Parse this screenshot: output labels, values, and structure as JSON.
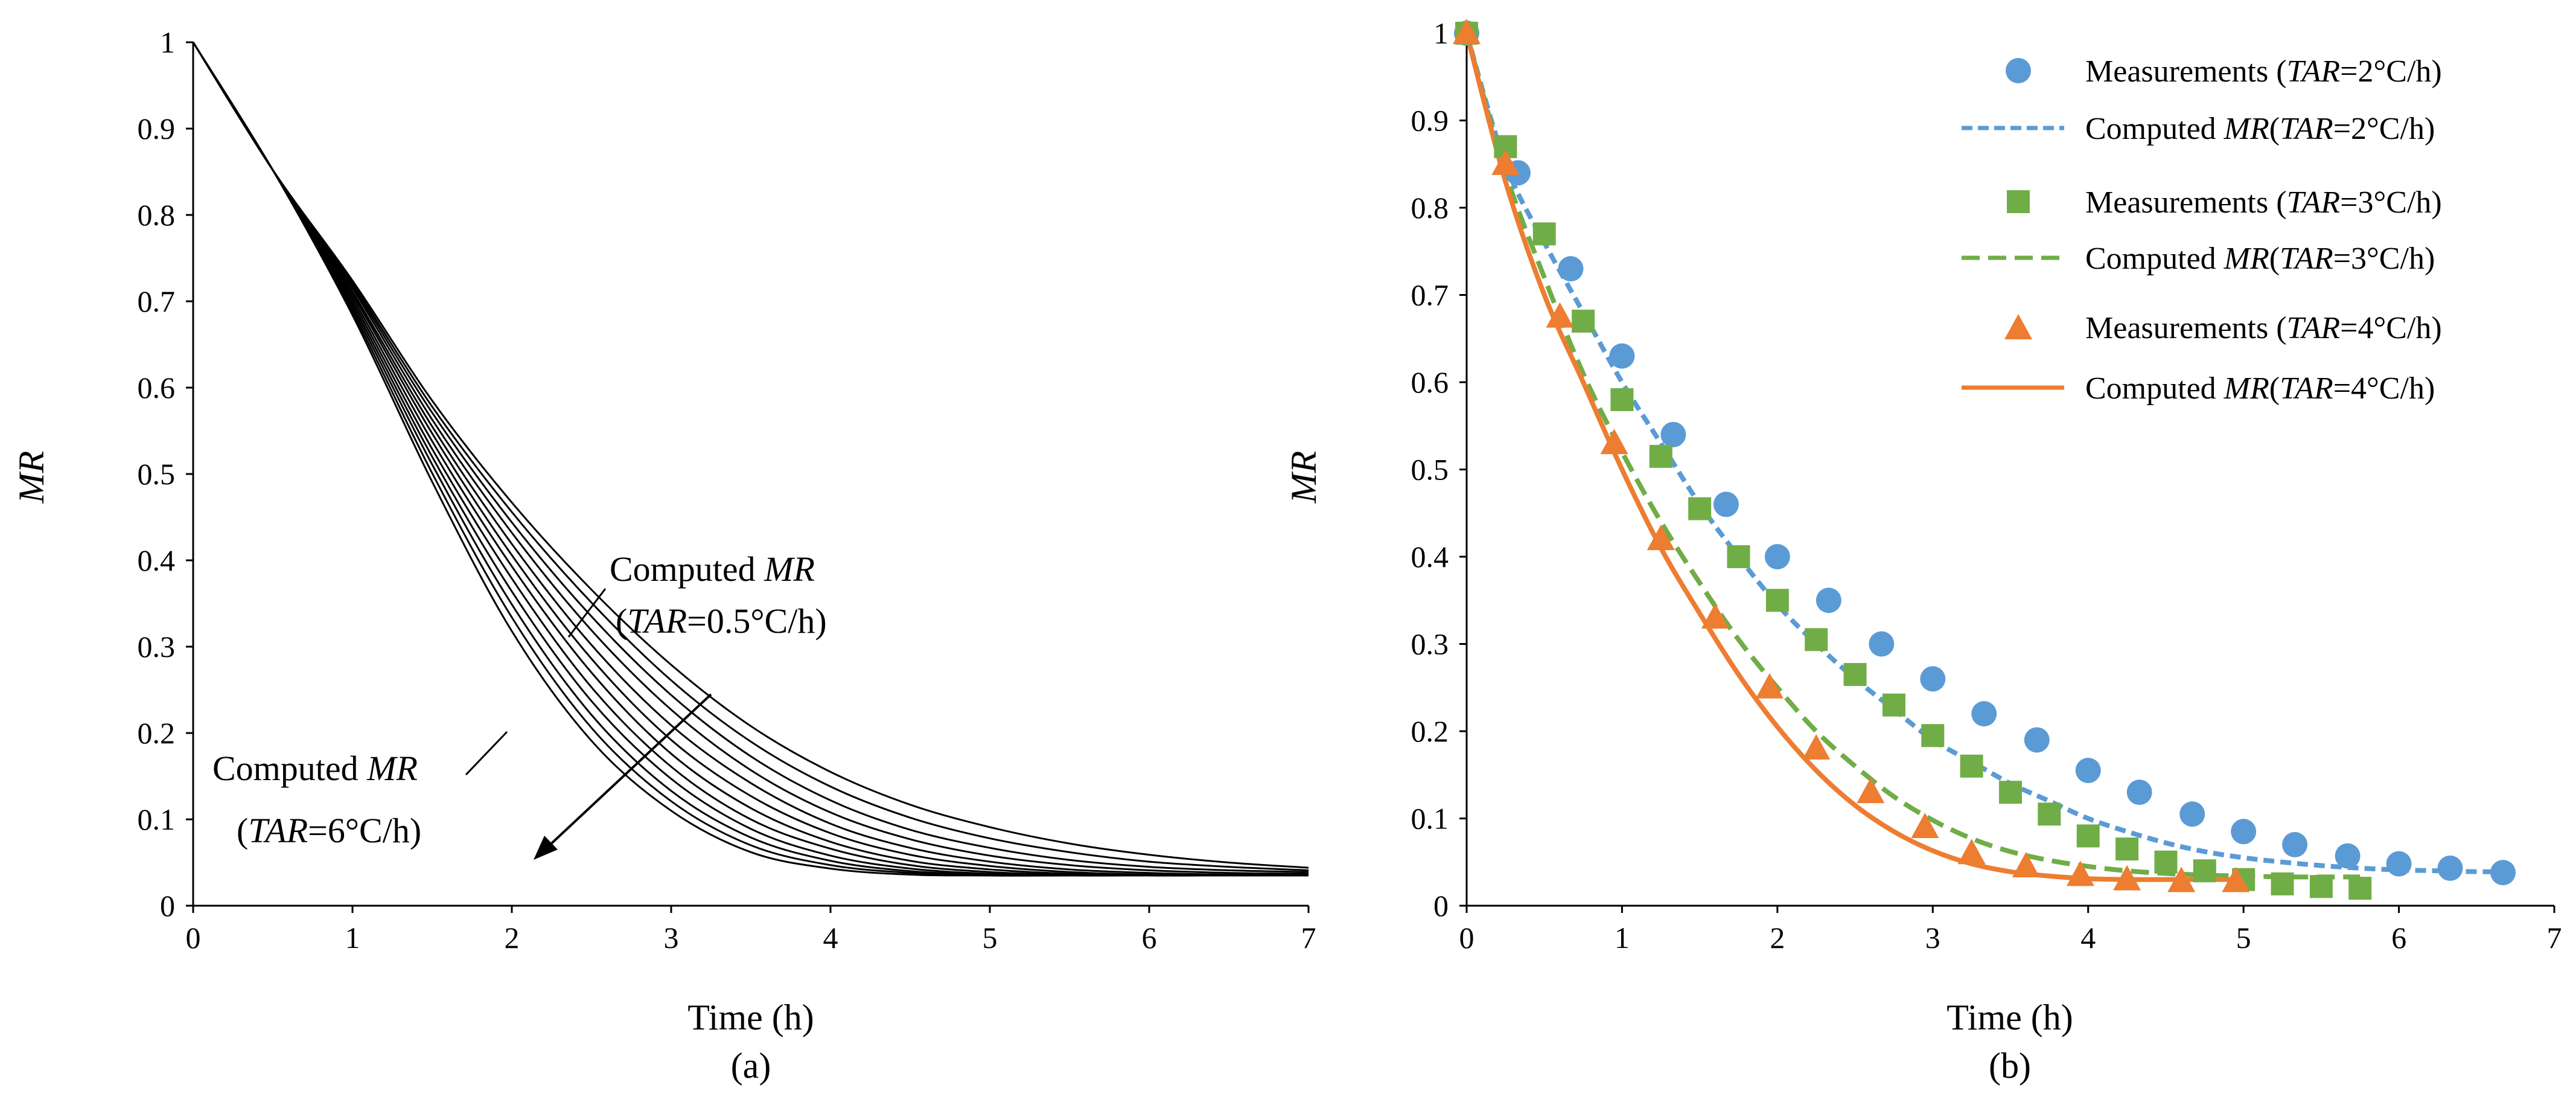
{
  "chart_data": [
    {
      "type": "line",
      "panel_label": "(a)",
      "xlabel": "Time (h)",
      "ylabel": "MR",
      "xlim": [
        0,
        7
      ],
      "ylim": [
        0,
        1
      ],
      "x_ticks": [
        "0",
        "1",
        "2",
        "3",
        "4",
        "5",
        "6",
        "7"
      ],
      "y_ticks": [
        "0",
        "0.1",
        "0.2",
        "0.3",
        "0.4",
        "0.5",
        "0.6",
        "0.7",
        "0.8",
        "0.9",
        "1"
      ],
      "grid": false,
      "legend": "none",
      "series_color": "#000000",
      "annotations": [
        {
          "line1_plain": "Computed ",
          "line1_italic": "MR",
          "line2_open": "(",
          "line2_italic": "TAR",
          "line2_rest": "=0.5°C/h)"
        },
        {
          "line1_plain": "Computed ",
          "line1_italic": "MR",
          "line2_open": "(",
          "line2_italic": "TAR",
          "line2_rest": "=6°C/h)"
        }
      ],
      "series": [
        {
          "values": [
            1,
            0.852,
            0.724,
            0.585,
            0.467,
            0.366,
            0.279,
            0.208,
            0.155,
            0.117,
            0.091,
            0.072,
            0.059,
            0.05,
            0.044
          ]
        },
        {
          "values": [
            1,
            0.852,
            0.721,
            0.578,
            0.456,
            0.351,
            0.261,
            0.19,
            0.138,
            0.102,
            0.078,
            0.062,
            0.051,
            0.045,
            0.041
          ]
        },
        {
          "values": [
            1,
            0.852,
            0.718,
            0.571,
            0.444,
            0.335,
            0.244,
            0.173,
            0.122,
            0.088,
            0.067,
            0.053,
            0.045,
            0.041,
            0.039
          ]
        },
        {
          "values": [
            1,
            0.852,
            0.715,
            0.563,
            0.432,
            0.319,
            0.227,
            0.157,
            0.108,
            0.077,
            0.058,
            0.047,
            0.041,
            0.038,
            0.037
          ]
        },
        {
          "values": [
            1,
            0.852,
            0.711,
            0.555,
            0.419,
            0.302,
            0.209,
            0.142,
            0.095,
            0.067,
            0.051,
            0.042,
            0.038,
            0.036,
            0.035
          ]
        },
        {
          "values": [
            1,
            0.852,
            0.708,
            0.547,
            0.406,
            0.286,
            0.192,
            0.127,
            0.084,
            0.059,
            0.046,
            0.039,
            0.036,
            0.035,
            0.035
          ]
        },
        {
          "values": [
            1,
            0.852,
            0.704,
            0.538,
            0.393,
            0.27,
            0.176,
            0.113,
            0.074,
            0.052,
            0.042,
            0.037,
            0.035,
            0.035,
            0.035
          ]
        },
        {
          "values": [
            1,
            0.852,
            0.7,
            0.529,
            0.379,
            0.253,
            0.161,
            0.1,
            0.066,
            0.047,
            0.039,
            0.036,
            0.035,
            0.035,
            0.035
          ]
        },
        {
          "values": [
            1,
            0.852,
            0.696,
            0.52,
            0.364,
            0.237,
            0.147,
            0.089,
            0.058,
            0.043,
            0.037,
            0.035,
            0.035,
            0.035,
            0.035
          ]
        },
        {
          "values": [
            1,
            0.852,
            0.692,
            0.511,
            0.349,
            0.221,
            0.133,
            0.079,
            0.052,
            0.04,
            0.036,
            0.035,
            0.035,
            0.035,
            0.035
          ]
        },
        {
          "values": [
            1,
            0.852,
            0.688,
            0.501,
            0.334,
            0.206,
            0.121,
            0.07,
            0.047,
            0.038,
            0.035,
            0.035,
            0.035,
            0.035,
            0.035
          ]
        },
        {
          "values": [
            1,
            0.852,
            0.684,
            0.491,
            0.318,
            0.191,
            0.11,
            0.062,
            0.043,
            0.036,
            0.035,
            0.035,
            0.035,
            0.035,
            0.035
          ]
        }
      ],
      "x": [
        0,
        0.5,
        1,
        1.5,
        2,
        2.5,
        3,
        3.5,
        4,
        4.5,
        5,
        5.5,
        6,
        6.5,
        7
      ]
    },
    {
      "type": "scatter",
      "panel_label": "(b)",
      "xlabel": "Time (h)",
      "ylabel": "MR",
      "xlim": [
        0,
        7
      ],
      "ylim": [
        0,
        1
      ],
      "x_ticks": [
        "0",
        "1",
        "2",
        "3",
        "4",
        "5",
        "6",
        "7"
      ],
      "y_ticks": [
        "0",
        "0.1",
        "0.2",
        "0.3",
        "0.4",
        "0.5",
        "0.6",
        "0.7",
        "0.8",
        "0.9",
        "1"
      ],
      "grid": false,
      "legend": "top-right",
      "series": [
        {
          "name": "Measurements (TAR=2°C/h)",
          "legend_plain": "Measurements (",
          "legend_italic": "TAR",
          "legend_rest": "=2°C/h)",
          "kind": "markers",
          "marker": "circle",
          "color": "#5b9bd5",
          "x": [
            0,
            0.33,
            0.67,
            1.0,
            1.33,
            1.67,
            2.0,
            2.33,
            2.67,
            3.0,
            3.33,
            3.67,
            4.0,
            4.33,
            4.67,
            5.0,
            5.33,
            5.67,
            6.0,
            6.33,
            6.67
          ],
          "y": [
            1.0,
            0.84,
            0.73,
            0.63,
            0.54,
            0.46,
            0.4,
            0.35,
            0.3,
            0.26,
            0.22,
            0.19,
            0.155,
            0.13,
            0.105,
            0.085,
            0.07,
            0.057,
            0.048,
            0.043,
            0.038
          ]
        },
        {
          "name": "Computed MR(TAR=2°C/h)",
          "legend_plain": "Computed ",
          "legend_italic": "MR",
          "legend_paren": "(",
          "legend_italic2": "TAR",
          "legend_rest": "=2°C/h)",
          "kind": "line",
          "dash": "dashed",
          "color": "#5b9bd5",
          "x": [
            0,
            0.25,
            0.5,
            0.75,
            1,
            1.25,
            1.5,
            1.75,
            2,
            2.25,
            2.5,
            2.75,
            3,
            3.25,
            3.5,
            3.75,
            4,
            4.25,
            4.5,
            4.75,
            5,
            5.25,
            5.5,
            5.75,
            6,
            6.25,
            6.5,
            6.75
          ],
          "y": [
            1,
            0.85,
            0.76,
            0.68,
            0.6,
            0.53,
            0.46,
            0.4,
            0.345,
            0.3,
            0.26,
            0.225,
            0.19,
            0.165,
            0.14,
            0.12,
            0.1,
            0.085,
            0.072,
            0.062,
            0.055,
            0.05,
            0.046,
            0.043,
            0.041,
            0.04,
            0.039,
            0.039
          ]
        },
        {
          "name": "Measurements (TAR=3°C/h)",
          "legend_plain": "Measurements (",
          "legend_italic": "TAR",
          "legend_rest": "=3°C/h)",
          "kind": "markers",
          "marker": "square",
          "color": "#70ad47",
          "x": [
            0,
            0.25,
            0.5,
            0.75,
            1.0,
            1.25,
            1.5,
            1.75,
            2.0,
            2.25,
            2.5,
            2.75,
            3.0,
            3.25,
            3.5,
            3.75,
            4.0,
            4.25,
            4.5,
            4.75,
            5.0,
            5.25,
            5.5,
            5.75
          ],
          "y": [
            1.0,
            0.87,
            0.77,
            0.67,
            0.58,
            0.515,
            0.455,
            0.4,
            0.35,
            0.305,
            0.265,
            0.23,
            0.195,
            0.16,
            0.13,
            0.105,
            0.08,
            0.065,
            0.05,
            0.04,
            0.03,
            0.025,
            0.022,
            0.02
          ]
        },
        {
          "name": "Computed MR(TAR=3°C/h)",
          "legend_plain": "Computed ",
          "legend_italic": "MR",
          "legend_paren": "(",
          "legend_italic2": "TAR",
          "legend_rest": "=3°C/h)",
          "kind": "line",
          "dash": "dashed",
          "color": "#70ad47",
          "x": [
            0,
            0.25,
            0.5,
            0.75,
            1,
            1.25,
            1.5,
            1.75,
            2,
            2.25,
            2.5,
            2.75,
            3,
            3.25,
            3.5,
            3.75,
            4,
            4.25,
            4.5,
            4.75,
            5,
            5.25,
            5.5,
            5.75
          ],
          "y": [
            1,
            0.84,
            0.72,
            0.61,
            0.52,
            0.44,
            0.37,
            0.305,
            0.25,
            0.2,
            0.16,
            0.125,
            0.098,
            0.077,
            0.062,
            0.052,
            0.045,
            0.04,
            0.037,
            0.035,
            0.034,
            0.033,
            0.033,
            0.033
          ]
        },
        {
          "name": "Measurements (TAR=4°C/h)",
          "legend_plain": "Measurements (",
          "legend_italic": "TAR",
          "legend_rest": "=4°C/h)",
          "kind": "markers",
          "marker": "triangle",
          "color": "#ed7d31",
          "x": [
            0,
            0.25,
            0.6,
            0.95,
            1.25,
            1.6,
            1.95,
            2.25,
            2.6,
            2.95,
            3.25,
            3.6,
            3.95,
            4.25,
            4.6,
            4.95
          ],
          "y": [
            1.0,
            0.85,
            0.675,
            0.53,
            0.42,
            0.33,
            0.25,
            0.18,
            0.13,
            0.09,
            0.06,
            0.045,
            0.035,
            0.03,
            0.028,
            0.028
          ]
        },
        {
          "name": "Computed MR(TAR=4°C/h)",
          "legend_plain": "Computed ",
          "legend_italic": "MR",
          "legend_paren": "(",
          "legend_italic2": "TAR",
          "legend_rest": "=4°C/h)",
          "kind": "line",
          "dash": "solid",
          "color": "#ed7d31",
          "x": [
            0,
            0.25,
            0.5,
            0.75,
            1,
            1.25,
            1.5,
            1.75,
            2,
            2.25,
            2.5,
            2.75,
            3,
            3.25,
            3.5,
            3.75,
            4,
            4.25,
            4.5,
            4.75,
            5
          ],
          "y": [
            1,
            0.83,
            0.7,
            0.6,
            0.5,
            0.41,
            0.335,
            0.265,
            0.205,
            0.155,
            0.115,
            0.085,
            0.063,
            0.048,
            0.039,
            0.034,
            0.031,
            0.03,
            0.03,
            0.03,
            0.03
          ]
        }
      ]
    }
  ]
}
